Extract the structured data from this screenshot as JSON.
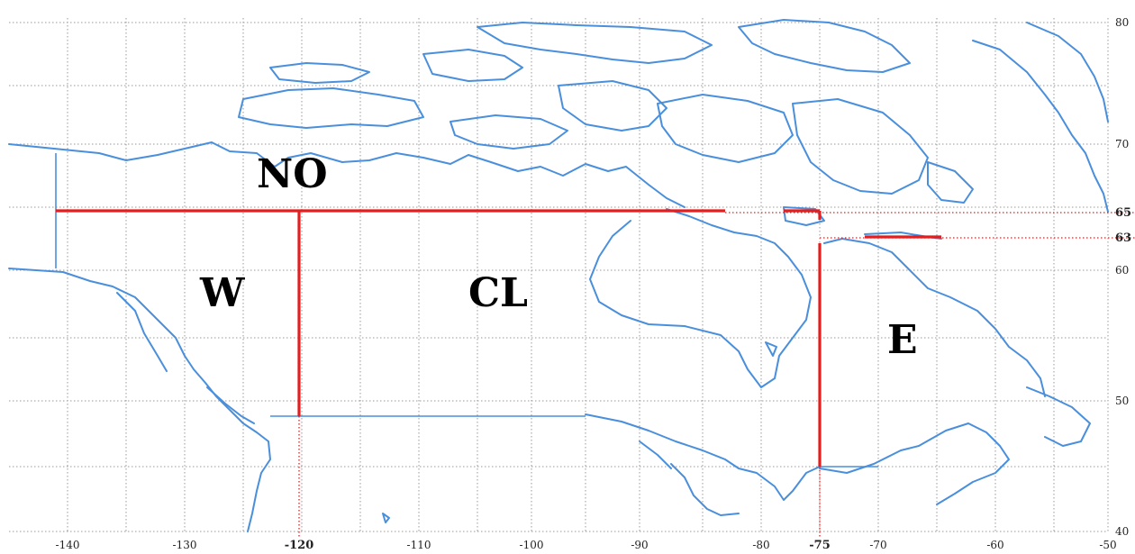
{
  "map": {
    "lon_ticks": [
      {
        "value": "-140",
        "bold": false
      },
      {
        "value": "-130",
        "bold": false
      },
      {
        "value": "-120",
        "bold": true
      },
      {
        "value": "-110",
        "bold": false
      },
      {
        "value": "-100",
        "bold": false
      },
      {
        "value": "-90",
        "bold": false
      },
      {
        "value": "-80",
        "bold": false
      },
      {
        "value": "-75",
        "bold": true
      },
      {
        "value": "-70",
        "bold": false
      },
      {
        "value": "-60",
        "bold": false
      },
      {
        "value": "-50",
        "bold": false
      }
    ],
    "lat_ticks": [
      {
        "value": "80",
        "bold": false
      },
      {
        "value": "70",
        "bold": false
      },
      {
        "value": "65",
        "bold": true
      },
      {
        "value": "63",
        "bold": true
      },
      {
        "value": "60",
        "bold": false
      },
      {
        "value": "50",
        "bold": false
      },
      {
        "value": "40",
        "bold": false
      }
    ],
    "regions": {
      "no": "NO",
      "w": "W",
      "cl": "CL",
      "e": "E"
    },
    "colors": {
      "coastline": "#4a8fdc",
      "region_boundary": "#e41e1e",
      "grid": "#9a9a9a"
    }
  }
}
